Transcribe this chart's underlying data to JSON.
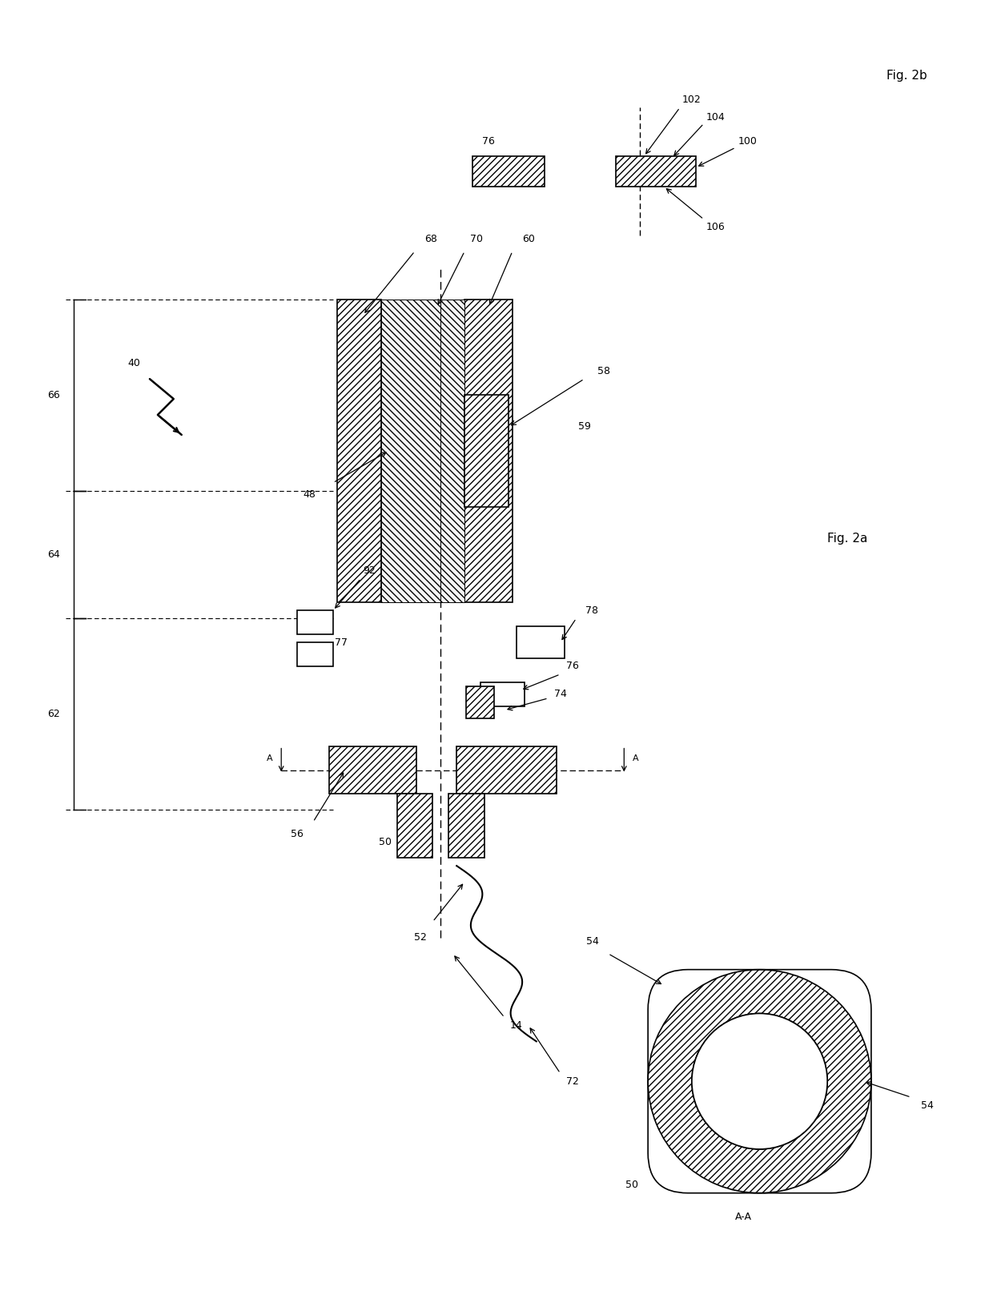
{
  "bg_color": "#ffffff",
  "line_color": "#000000",
  "fig_width": 12.4,
  "fig_height": 16.32,
  "fig2b_label": "Fig. 2b",
  "fig2a_label": "Fig. 2a",
  "label_40": "40",
  "label_14": "14",
  "label_72": "72",
  "label_48": "48",
  "label_50": "50",
  "label_52": "52",
  "label_54": "54",
  "label_56": "56",
  "label_58": "58",
  "label_59": "59",
  "label_60": "60",
  "label_62": "62",
  "label_64": "64",
  "label_66": "66",
  "label_68": "68",
  "label_70": "70",
  "label_74": "74",
  "label_76": "76",
  "label_77": "77",
  "label_78": "78",
  "label_92": "92",
  "label_100": "100",
  "label_102": "102",
  "label_104": "104",
  "label_106": "106",
  "label_AA": "A-A",
  "label_A": "A"
}
